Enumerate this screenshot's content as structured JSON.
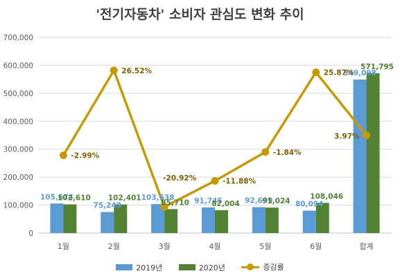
{
  "title": "'전기자동차' 소비자 관심도 변화 추이",
  "colors": {
    "s2019": "#5b9bd5",
    "s2020": "#548235",
    "rate": "#c49a06",
    "rate_label": "#7f6000",
    "grid": "#d9d9d9",
    "axis_text": "#595959"
  },
  "legend": {
    "s2019": "2019년",
    "s2020": "2020년",
    "rate": "증감률"
  },
  "chart_data": {
    "type": "bar",
    "categories": [
      "1월",
      "2월",
      "3월",
      "4월",
      "5월",
      "6월",
      "합계"
    ],
    "series": [
      {
        "name": "2019년",
        "values": [
          105674,
          75248,
          103638,
          91745,
          92699,
          80094,
          549098
        ],
        "labels": [
          "105,674",
          "75,248",
          "103,638",
          "91,745",
          "92,699",
          "80,094",
          "549,098"
        ]
      },
      {
        "name": "2020년",
        "values": [
          102610,
          102401,
          85710,
          82004,
          91024,
          108046,
          571795
        ],
        "labels": [
          "102,610",
          "102,401",
          "85,710",
          "82,004",
          "91,024",
          "108,046",
          "571,795"
        ]
      }
    ],
    "line_series": {
      "name": "증감률",
      "type": "line",
      "values": [
        -2.99,
        26.52,
        -20.92,
        -11.88,
        -1.84,
        25.87,
        3.97
      ],
      "labels": [
        "-2.99%",
        "26.52%",
        "-20.92%",
        "-11.88%",
        "-1.84%",
        "25.87%",
        "3.97%"
      ]
    },
    "ylim": [
      0,
      700000
    ],
    "yticks": [
      "0",
      "100,000",
      "200,000",
      "300,000",
      "400,000",
      "500,000",
      "600,000",
      "700,000"
    ],
    "ytick_values": [
      0,
      100000,
      200000,
      300000,
      400000,
      500000,
      600000,
      700000
    ],
    "secondary_ylim": [
      -30,
      38
    ],
    "grid": true,
    "legend_position": "bottom"
  }
}
